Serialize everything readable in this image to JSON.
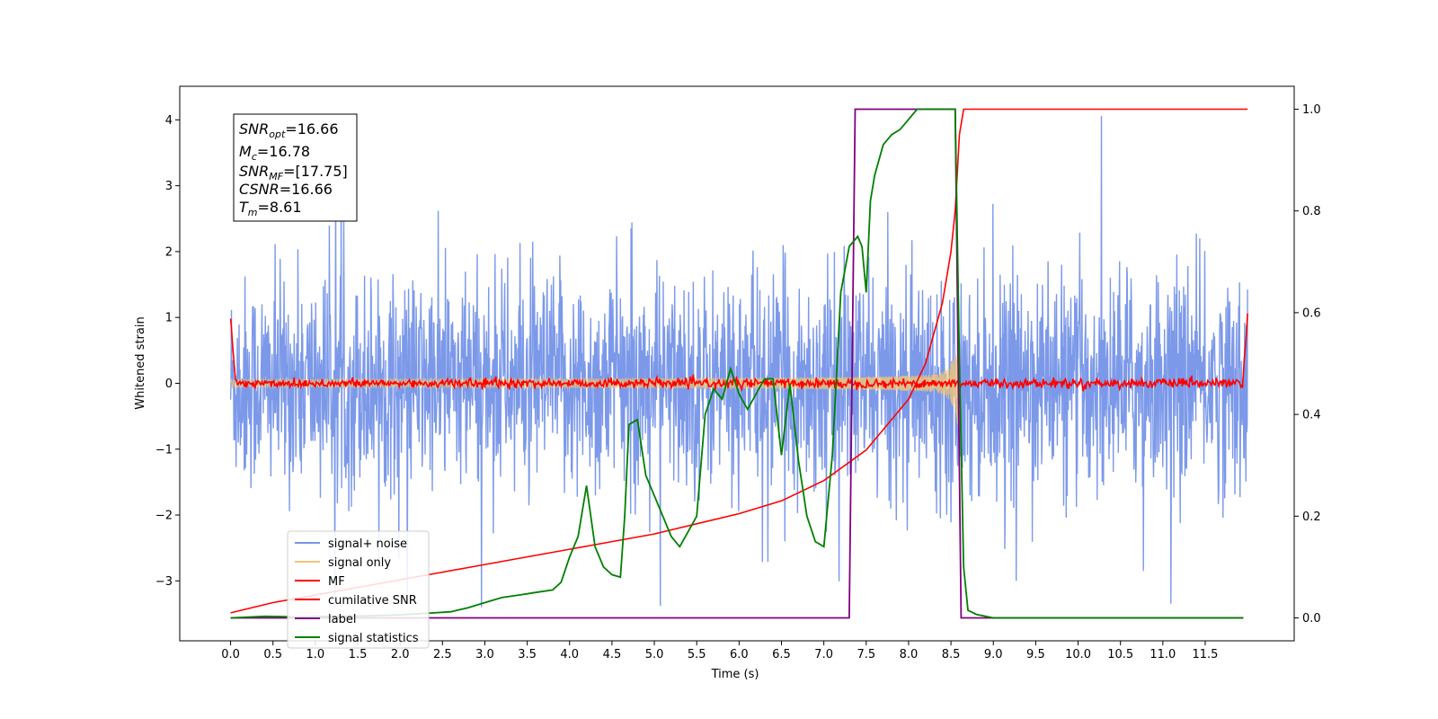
{
  "chart_data": {
    "type": "line",
    "xlabel": "Time (s)",
    "ylabel": "Whitened strain",
    "xlim": [
      -0.6,
      12.55
    ],
    "ylim": [
      -3.91,
      4.51
    ],
    "y2lim": [
      -0.045,
      1.045
    ],
    "xticks": [
      "0.0",
      "0.5",
      "1.0",
      "1.5",
      "2.0",
      "2.5",
      "3.0",
      "3.5",
      "4.0",
      "4.5",
      "5.0",
      "5.5",
      "6.0",
      "6.5",
      "7.0",
      "7.5",
      "8.0",
      "8.5",
      "9.0",
      "9.5",
      "10.0",
      "10.5",
      "11.0",
      "11.5"
    ],
    "yticks": [
      "−3",
      "−2",
      "−1",
      "0",
      "1",
      "2",
      "3",
      "4"
    ],
    "y2ticks": [
      "0.0",
      "0.2",
      "0.4",
      "0.6",
      "0.8",
      "1.0"
    ],
    "grid": false,
    "legend_position": "lower-left",
    "legend": [
      "signal+ noise",
      "signal only",
      "MF",
      "cumilative SNR",
      "label",
      "signal statistics"
    ],
    "colors": {
      "signal_noise": "#7593e8",
      "signal_only": "#f2c675",
      "mf": "#ff0000",
      "cumulative_snr": "#ff0000",
      "label": "#800080",
      "signal_statistics": "#008000"
    },
    "annotation": {
      "snr_opt": {
        "base": "SNR",
        "sub": "opt",
        "rest": "=16.66"
      },
      "mc": {
        "base": "M",
        "sub": "c",
        "rest": "=16.78"
      },
      "snr_mf": {
        "base": "SNR",
        "sub": "MF",
        "rest": "=[17.75]"
      },
      "csnr": {
        "base": "CSNR",
        "sub": "",
        "rest": "=16.66"
      },
      "tm": {
        "base": "T",
        "sub": "m",
        "rest": "=8.61"
      }
    },
    "series": [
      {
        "name": "signal+ noise",
        "axis": "left",
        "description_values": {
          "x_range": [
            0.0,
            12.0
          ],
          "typical_band": [
            -1.9,
            1.9
          ],
          "max": 4.1,
          "min": -3.4
        }
      },
      {
        "name": "signal only",
        "axis": "left",
        "description_values": {
          "x_range": [
            0.0,
            8.6
          ],
          "envelope_end_amplitude": 1.1
        }
      },
      {
        "name": "MF",
        "axis": "left",
        "description_values": {
          "x_range": [
            0.0,
            12.0
          ],
          "start": 1.0,
          "baseline": 0.0,
          "end": 1.0
        }
      },
      {
        "name": "cumilative SNR",
        "axis": "right",
        "x": [
          0.0,
          0.5,
          1.0,
          1.5,
          2.0,
          2.5,
          3.0,
          3.5,
          4.0,
          4.5,
          5.0,
          5.5,
          6.0,
          6.5,
          7.0,
          7.5,
          8.0,
          8.2,
          8.4,
          8.5,
          8.55,
          8.6,
          8.65,
          9.0,
          10.0,
          11.0,
          12.0
        ],
        "values": [
          0.01,
          0.03,
          0.045,
          0.06,
          0.075,
          0.09,
          0.105,
          0.12,
          0.135,
          0.15,
          0.165,
          0.185,
          0.205,
          0.23,
          0.27,
          0.33,
          0.43,
          0.5,
          0.62,
          0.72,
          0.8,
          0.95,
          1.0,
          1.0,
          1.0,
          1.0,
          1.0
        ]
      },
      {
        "name": "label",
        "axis": "right",
        "x": [
          0.0,
          7.3,
          7.37,
          8.55,
          8.62,
          11.95
        ],
        "values": [
          0.0,
          0.0,
          1.0,
          1.0,
          0.0,
          0.0
        ]
      },
      {
        "name": "signal statistics",
        "axis": "right",
        "x": [
          0.0,
          0.4,
          0.8,
          1.2,
          1.6,
          2.0,
          2.2,
          2.4,
          2.6,
          2.8,
          3.0,
          3.2,
          3.4,
          3.6,
          3.8,
          3.9,
          4.0,
          4.1,
          4.2,
          4.3,
          4.4,
          4.5,
          4.6,
          4.65,
          4.7,
          4.8,
          4.9,
          5.0,
          5.1,
          5.2,
          5.3,
          5.4,
          5.5,
          5.6,
          5.7,
          5.8,
          5.9,
          6.0,
          6.1,
          6.2,
          6.3,
          6.4,
          6.5,
          6.6,
          6.7,
          6.8,
          6.9,
          7.0,
          7.1,
          7.2,
          7.3,
          7.4,
          7.45,
          7.5,
          7.55,
          7.6,
          7.7,
          7.8,
          7.9,
          8.0,
          8.1,
          8.2,
          8.3,
          8.4,
          8.5,
          8.55,
          8.6,
          8.65,
          8.7,
          8.8,
          9.0,
          10.0,
          11.0,
          11.95
        ],
        "values": [
          0.0,
          0.003,
          0.002,
          0.003,
          0.004,
          0.006,
          0.008,
          0.01,
          0.012,
          0.02,
          0.03,
          0.04,
          0.045,
          0.05,
          0.055,
          0.07,
          0.12,
          0.16,
          0.26,
          0.14,
          0.1,
          0.085,
          0.08,
          0.2,
          0.38,
          0.39,
          0.28,
          0.24,
          0.2,
          0.16,
          0.14,
          0.17,
          0.2,
          0.4,
          0.45,
          0.43,
          0.49,
          0.44,
          0.41,
          0.44,
          0.47,
          0.47,
          0.32,
          0.46,
          0.31,
          0.2,
          0.15,
          0.14,
          0.32,
          0.64,
          0.73,
          0.75,
          0.73,
          0.64,
          0.82,
          0.87,
          0.93,
          0.95,
          0.96,
          0.98,
          1.0,
          1.0,
          1.0,
          1.0,
          1.0,
          1.0,
          0.5,
          0.1,
          0.015,
          0.007,
          0.0,
          0.0,
          0.0,
          0.0
        ]
      }
    ]
  }
}
